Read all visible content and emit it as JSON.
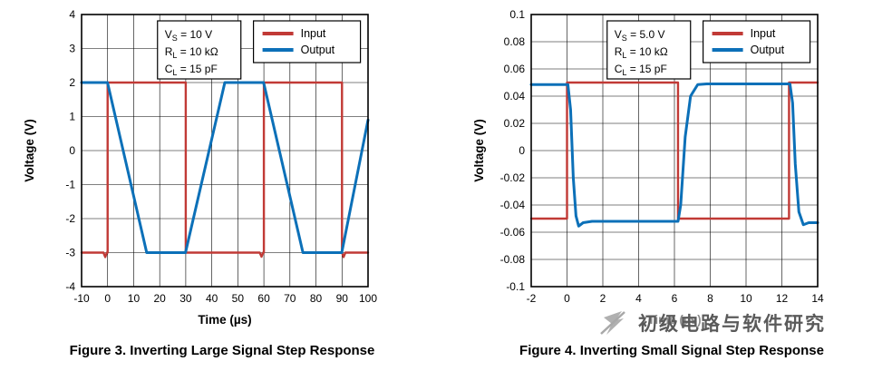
{
  "colors": {
    "input": "#c13a36",
    "output": "#0c70b8",
    "grid": "#000000",
    "axis": "#000000",
    "watermark_text": "#5a5a5a",
    "watermark_logo": "#a8a8a8"
  },
  "watermark": {
    "text": "初级电路与软件研究"
  },
  "charts": [
    {
      "caption": "Figure 3. Inverting Large Signal Step Response",
      "conditions": [
        {
          "sym": "V",
          "sub": "S",
          "rest": " = 10 V"
        },
        {
          "sym": "R",
          "sub": "L",
          "rest": " = 10 kΩ"
        },
        {
          "sym": "C",
          "sub": "L",
          "rest": " = 15 pF"
        }
      ],
      "legend": [
        {
          "label": "Input",
          "series": 0
        },
        {
          "label": "Output",
          "series": 1
        }
      ],
      "chart_data": {
        "type": "line",
        "title": "",
        "xlabel": "Time (µs)",
        "ylabel": "Voltage (V)",
        "xlim": [
          -10,
          100
        ],
        "ylim": [
          -4,
          4
        ],
        "grid": true,
        "legend_position": "top-inside",
        "x_ticks": {
          "values": [
            -10,
            0,
            10,
            20,
            30,
            40,
            50,
            60,
            70,
            80,
            90,
            100
          ],
          "labels": [
            "-10",
            "0",
            "10",
            "20",
            "30",
            "40",
            "50",
            "60",
            "70",
            "80",
            "90",
            "100"
          ]
        },
        "y_ticks": {
          "values": [
            4,
            3,
            2,
            1,
            0,
            -1,
            -2,
            -3,
            -4
          ],
          "labels": [
            "4",
            "3",
            "2",
            "1",
            "0",
            "-1",
            "-2",
            "-3",
            "-4"
          ]
        },
        "series": [
          {
            "name": "Input",
            "color_key": "input",
            "width": 2.4,
            "points": [
              [
                -10,
                -3
              ],
              [
                -1.6,
                -3
              ],
              [
                -0.9,
                -3.13
              ],
              [
                -0.3,
                -3
              ],
              [
                0,
                -3
              ],
              [
                0,
                2
              ],
              [
                30,
                2
              ],
              [
                30,
                -3
              ],
              [
                58.4,
                -3
              ],
              [
                59.1,
                -3.12
              ],
              [
                59.7,
                -3
              ],
              [
                60,
                -3
              ],
              [
                60,
                2
              ],
              [
                90,
                2
              ],
              [
                90,
                -3
              ],
              [
                90.6,
                -3.13
              ],
              [
                91.3,
                -3
              ],
              [
                100,
                -3
              ]
            ]
          },
          {
            "name": "Output",
            "color_key": "output",
            "width": 3,
            "points": [
              [
                -10,
                2
              ],
              [
                -0.05,
                2
              ],
              [
                15,
                -3
              ],
              [
                29.9,
                -3
              ],
              [
                45,
                2
              ],
              [
                59.9,
                2
              ],
              [
                75,
                -3
              ],
              [
                89.9,
                -3
              ],
              [
                100,
                0.9
              ]
            ]
          }
        ]
      }
    },
    {
      "caption": "Figure 4. Inverting Small Signal Step Response",
      "conditions": [
        {
          "sym": "V",
          "sub": "S",
          "rest": " = 5.0 V"
        },
        {
          "sym": "R",
          "sub": "L",
          "rest": " = 10 kΩ"
        },
        {
          "sym": "C",
          "sub": "L",
          "rest": " = 15 pF"
        }
      ],
      "legend": [
        {
          "label": "Input",
          "series": 0
        },
        {
          "label": "Output",
          "series": 1
        }
      ],
      "chart_data": {
        "type": "line",
        "title": "",
        "xlabel": "Time (µs)",
        "ylabel": "Voltage (V)",
        "xlim": [
          -2,
          14
        ],
        "ylim": [
          -0.1,
          0.1
        ],
        "grid": true,
        "legend_position": "top-inside",
        "x_ticks": {
          "values": [
            -2,
            0,
            2,
            4,
            6,
            8,
            10,
            12,
            14
          ],
          "labels": [
            "-2",
            "0",
            "2",
            "4",
            "6",
            "8",
            "10",
            "12",
            "14"
          ]
        },
        "y_ticks": {
          "values": [
            0.1,
            0.08,
            0.06,
            0.04,
            0.02,
            0,
            -0.02,
            -0.04,
            -0.06,
            -0.08,
            -0.1
          ],
          "labels": [
            "0.1",
            "0.08",
            "0.06",
            "0.04",
            "0.02",
            "0",
            "-0.02",
            "-0.04",
            "-0.06",
            "-0.08",
            "-0.1"
          ]
        },
        "series": [
          {
            "name": "Input",
            "color_key": "input",
            "width": 2.4,
            "points": [
              [
                -2,
                -0.05
              ],
              [
                0,
                -0.05
              ],
              [
                0,
                0.05
              ],
              [
                6.2,
                0.05
              ],
              [
                6.2,
                -0.05
              ],
              [
                12.4,
                -0.05
              ],
              [
                12.4,
                0.05
              ],
              [
                14,
                0.05
              ]
            ]
          },
          {
            "name": "Output",
            "color_key": "output",
            "width": 3,
            "points": [
              [
                -2,
                0.0485
              ],
              [
                0.05,
                0.0485
              ],
              [
                0.2,
                0.03
              ],
              [
                0.35,
                -0.02
              ],
              [
                0.5,
                -0.048
              ],
              [
                0.65,
                -0.0555
              ],
              [
                0.9,
                -0.053
              ],
              [
                1.4,
                -0.052
              ],
              [
                6.2,
                -0.052
              ],
              [
                6.35,
                -0.04
              ],
              [
                6.6,
                0.01
              ],
              [
                6.9,
                0.04
              ],
              [
                7.3,
                0.0485
              ],
              [
                7.8,
                0.049
              ],
              [
                12.45,
                0.049
              ],
              [
                12.6,
                0.035
              ],
              [
                12.75,
                -0.01
              ],
              [
                12.95,
                -0.045
              ],
              [
                13.2,
                -0.0545
              ],
              [
                13.5,
                -0.053
              ],
              [
                14,
                -0.053
              ]
            ]
          }
        ]
      }
    }
  ]
}
